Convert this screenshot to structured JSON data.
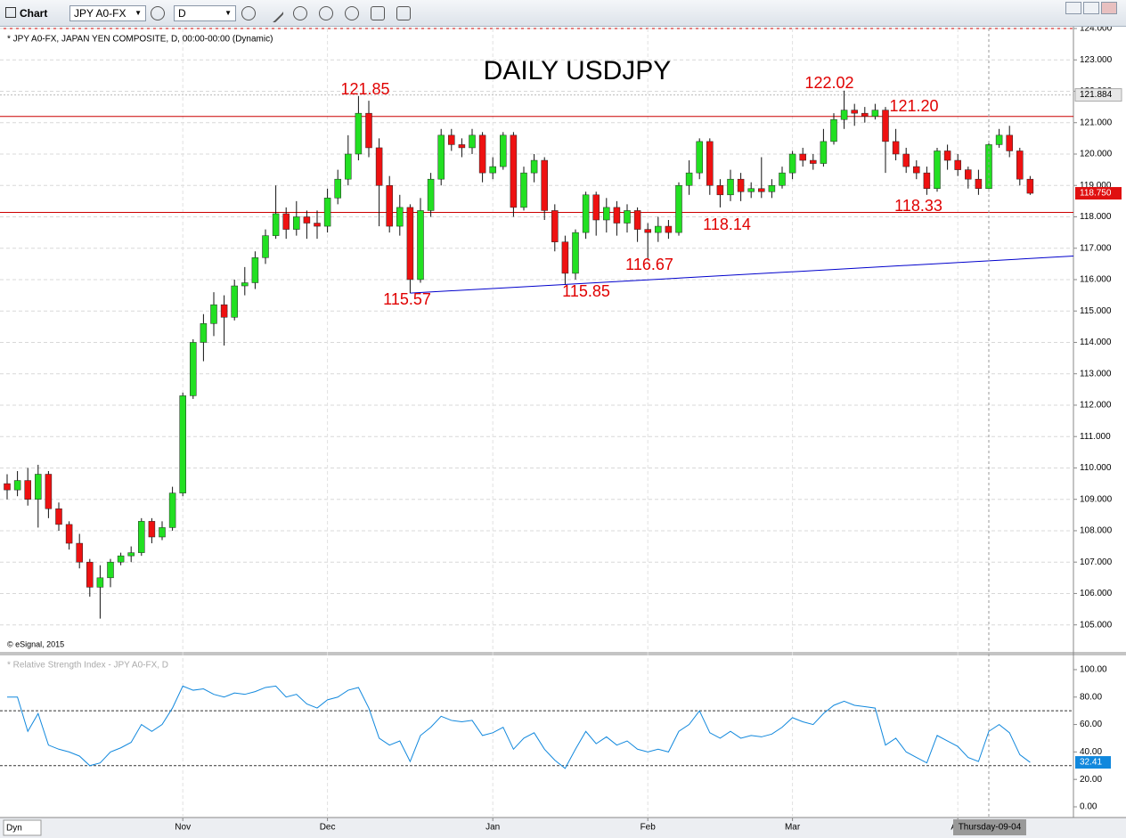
{
  "toolbar": {
    "title": "Chart",
    "symbol": "JPY A0-FX",
    "interval": "D"
  },
  "chart_data": {
    "type": "candlestick",
    "info": "* JPY A0-FX, JAPAN YEN COMPOSITE, D, 00:00-00:00 (Dynamic)",
    "title": "DAILY USDJPY",
    "copyright": "© eSignal, 2015",
    "open": [
      109.5,
      109.3,
      109.6,
      109.0,
      109.8,
      108.7,
      108.2,
      107.6,
      107.0,
      106.2,
      106.5,
      107.0,
      107.2,
      107.3,
      108.3,
      107.8,
      108.1,
      109.2,
      112.3,
      114.0,
      114.6,
      115.2,
      114.8,
      115.8,
      115.9,
      116.7,
      117.4,
      118.1,
      117.6,
      118.0,
      117.8,
      117.7,
      118.6,
      119.2,
      120.0,
      121.3,
      120.2,
      119.0,
      117.7,
      118.3,
      116.0,
      118.2,
      119.2,
      120.6,
      120.3,
      120.2,
      120.6,
      119.4,
      119.6,
      120.6,
      118.3,
      119.4,
      119.8,
      118.2,
      117.2,
      116.2,
      117.5,
      118.7,
      117.9,
      118.3,
      117.8,
      118.2,
      117.6,
      117.5,
      117.7,
      117.5,
      119.0,
      119.4,
      120.4,
      119.0,
      118.7,
      119.2,
      118.8,
      118.9,
      118.8,
      119.0,
      119.4,
      120.0,
      119.8,
      119.7,
      120.4,
      121.1,
      121.4,
      121.3,
      121.2,
      121.4,
      120.4,
      120.0,
      119.6,
      119.4,
      118.9,
      120.1,
      119.8,
      119.5,
      119.2,
      118.9,
      120.3,
      120.6,
      120.1,
      119.2
    ],
    "high": [
      109.8,
      109.9,
      110.0,
      110.1,
      109.9,
      108.9,
      108.3,
      107.9,
      107.1,
      106.9,
      107.1,
      107.3,
      107.5,
      108.4,
      108.4,
      108.3,
      109.4,
      112.4,
      114.1,
      114.9,
      115.6,
      115.5,
      116.0,
      116.4,
      116.9,
      117.6,
      119.0,
      118.3,
      118.5,
      118.2,
      118.2,
      118.9,
      119.5,
      120.6,
      121.85,
      121.7,
      120.5,
      119.3,
      118.7,
      118.4,
      118.6,
      119.4,
      120.8,
      120.8,
      120.5,
      120.8,
      120.7,
      119.9,
      120.7,
      120.7,
      119.6,
      120.0,
      119.9,
      118.4,
      117.4,
      117.6,
      118.8,
      118.8,
      118.6,
      118.5,
      118.4,
      118.3,
      117.8,
      118.0,
      117.9,
      119.1,
      119.8,
      120.5,
      120.5,
      119.2,
      119.5,
      119.4,
      119.1,
      119.9,
      119.2,
      119.6,
      120.1,
      120.2,
      120.0,
      120.8,
      121.3,
      122.02,
      121.6,
      121.5,
      121.6,
      121.5,
      120.8,
      120.2,
      119.8,
      119.6,
      120.2,
      120.3,
      120.0,
      119.6,
      119.5,
      120.4,
      120.8,
      120.9,
      120.2,
      119.3
    ],
    "low": [
      109.0,
      109.1,
      108.8,
      108.1,
      108.4,
      108.0,
      107.4,
      106.8,
      105.9,
      105.2,
      106.2,
      106.9,
      107.0,
      107.2,
      107.6,
      107.7,
      108.0,
      109.1,
      112.2,
      113.4,
      114.2,
      113.9,
      114.7,
      115.5,
      115.7,
      116.5,
      117.3,
      117.3,
      117.4,
      117.3,
      117.3,
      117.5,
      118.4,
      119.0,
      119.8,
      119.9,
      117.7,
      117.5,
      117.4,
      115.57,
      115.9,
      118.0,
      119.0,
      120.1,
      119.9,
      120.0,
      119.1,
      119.2,
      119.5,
      118.0,
      118.2,
      119.1,
      117.9,
      116.9,
      115.85,
      116.0,
      117.3,
      117.4,
      117.5,
      117.4,
      117.5,
      117.2,
      116.67,
      117.2,
      117.3,
      117.4,
      118.7,
      119.2,
      118.7,
      118.3,
      118.5,
      118.5,
      118.6,
      118.6,
      118.6,
      118.9,
      119.2,
      119.6,
      119.5,
      119.6,
      120.3,
      120.8,
      120.9,
      121.0,
      121.1,
      119.4,
      119.8,
      119.4,
      119.2,
      118.7,
      118.8,
      119.5,
      119.3,
      118.9,
      118.7,
      118.8,
      120.2,
      119.9,
      119.0,
      118.7
    ],
    "close": [
      109.3,
      109.6,
      109.0,
      109.8,
      108.7,
      108.2,
      107.6,
      107.0,
      106.2,
      106.5,
      107.0,
      107.2,
      107.3,
      108.3,
      107.8,
      108.1,
      109.2,
      112.3,
      114.0,
      114.6,
      115.2,
      114.8,
      115.8,
      115.9,
      116.7,
      117.4,
      118.1,
      117.6,
      118.0,
      117.8,
      117.7,
      118.6,
      119.2,
      120.0,
      121.3,
      120.2,
      119.0,
      117.7,
      118.3,
      116.0,
      118.2,
      119.2,
      120.6,
      120.3,
      120.2,
      120.6,
      119.4,
      119.6,
      120.6,
      118.3,
      119.4,
      119.8,
      118.2,
      117.2,
      116.2,
      117.5,
      118.7,
      117.9,
      118.3,
      117.8,
      118.2,
      117.6,
      117.5,
      117.7,
      117.5,
      119.0,
      119.4,
      120.4,
      119.0,
      118.7,
      119.2,
      118.8,
      118.9,
      118.8,
      119.0,
      119.4,
      120.0,
      119.8,
      119.7,
      120.4,
      121.1,
      121.4,
      121.3,
      121.2,
      121.4,
      120.4,
      120.0,
      119.6,
      119.4,
      118.9,
      120.1,
      119.8,
      119.5,
      119.2,
      118.9,
      120.3,
      120.6,
      120.1,
      119.2,
      118.75
    ],
    "up_color": "#22e022",
    "down_color": "#ee1111",
    "ylim": [
      104.14,
      124.0
    ],
    "yticks": [
      {
        "value": 105,
        "label": "105.000"
      },
      {
        "value": 106,
        "label": "106.000"
      },
      {
        "value": 107,
        "label": "107.000"
      },
      {
        "value": 108,
        "label": "108.000"
      },
      {
        "value": 109,
        "label": "109.000"
      },
      {
        "value": 110,
        "label": "110.000"
      },
      {
        "value": 111,
        "label": "111.000"
      },
      {
        "value": 112,
        "label": "112.000"
      },
      {
        "value": 113,
        "label": "113.000"
      },
      {
        "value": 114,
        "label": "114.000"
      },
      {
        "value": 115,
        "label": "115.000"
      },
      {
        "value": 116,
        "label": "116.000"
      },
      {
        "value": 117,
        "label": "117.000"
      },
      {
        "value": 118,
        "label": "118.000"
      },
      {
        "value": 119,
        "label": "119.000"
      },
      {
        "value": 120,
        "label": "120.000"
      },
      {
        "value": 121,
        "label": "121.000"
      },
      {
        "value": 122,
        "label": "122.000"
      },
      {
        "value": 123,
        "label": "123.000"
      },
      {
        "value": 124,
        "label": "124.000"
      }
    ],
    "xticks": [
      {
        "value": 17,
        "label": "Nov"
      },
      {
        "value": 31,
        "label": "Dec"
      },
      {
        "value": 47,
        "label": "Jan"
      },
      {
        "value": 62,
        "label": "Feb"
      },
      {
        "value": 76,
        "label": "Mar"
      },
      {
        "value": 92,
        "label": "Apr"
      }
    ],
    "crosshair": {
      "value": 95,
      "label": "Thursday-09-04"
    },
    "hlines": [
      121.2,
      118.14
    ],
    "hline_color": "#cc0000",
    "trend_line": [
      115.57,
      116.75
    ],
    "trend_color": "#0000cc",
    "price_tags": [
      {
        "value": 121.884,
        "label": "121.884"
      },
      {
        "value": 118.75,
        "label": "118.750"
      }
    ],
    "annotations": [
      "121.85",
      "122.02",
      "121.20",
      "118.33",
      "118.14",
      "116.67",
      "115.85",
      "115.57"
    ],
    "grid": true,
    "rsi": {
      "title": "* Relative Strength Index - JPY A0-FX, D",
      "color": "#1188dd",
      "values": [
        80,
        80,
        55,
        68,
        45,
        42,
        40,
        37,
        30,
        32,
        40,
        43,
        47,
        60,
        55,
        60,
        72,
        88,
        85,
        86,
        82,
        80,
        83,
        82,
        84,
        87,
        88,
        80,
        82,
        75,
        72,
        78,
        80,
        85,
        87,
        72,
        50,
        45,
        48,
        33,
        52,
        58,
        66,
        63,
        62,
        63,
        52,
        54,
        58,
        42,
        50,
        54,
        42,
        34,
        28,
        42,
        55,
        46,
        51,
        45,
        48,
        42,
        40,
        42,
        40,
        55,
        60,
        70,
        54,
        50,
        55,
        50,
        52,
        51,
        53,
        58,
        65,
        62,
        60,
        68,
        74,
        77,
        74,
        73,
        72,
        45,
        50,
        40,
        36,
        32,
        52,
        48,
        44,
        36,
        33,
        55,
        60,
        54,
        38,
        32.41
      ],
      "ylim": [
        -7.8,
        111
      ],
      "yticks": [
        {
          "value": 0,
          "label": "0.00"
        },
        {
          "value": 20,
          "label": "20.00"
        },
        {
          "value": 40,
          "label": "40.00"
        },
        {
          "value": 60,
          "label": "60.00"
        },
        {
          "value": 80,
          "label": "80.00"
        },
        {
          "value": 100,
          "label": "100.00"
        }
      ],
      "levels": [
        70,
        30
      ]
    },
    "footer": "Dyn"
  }
}
